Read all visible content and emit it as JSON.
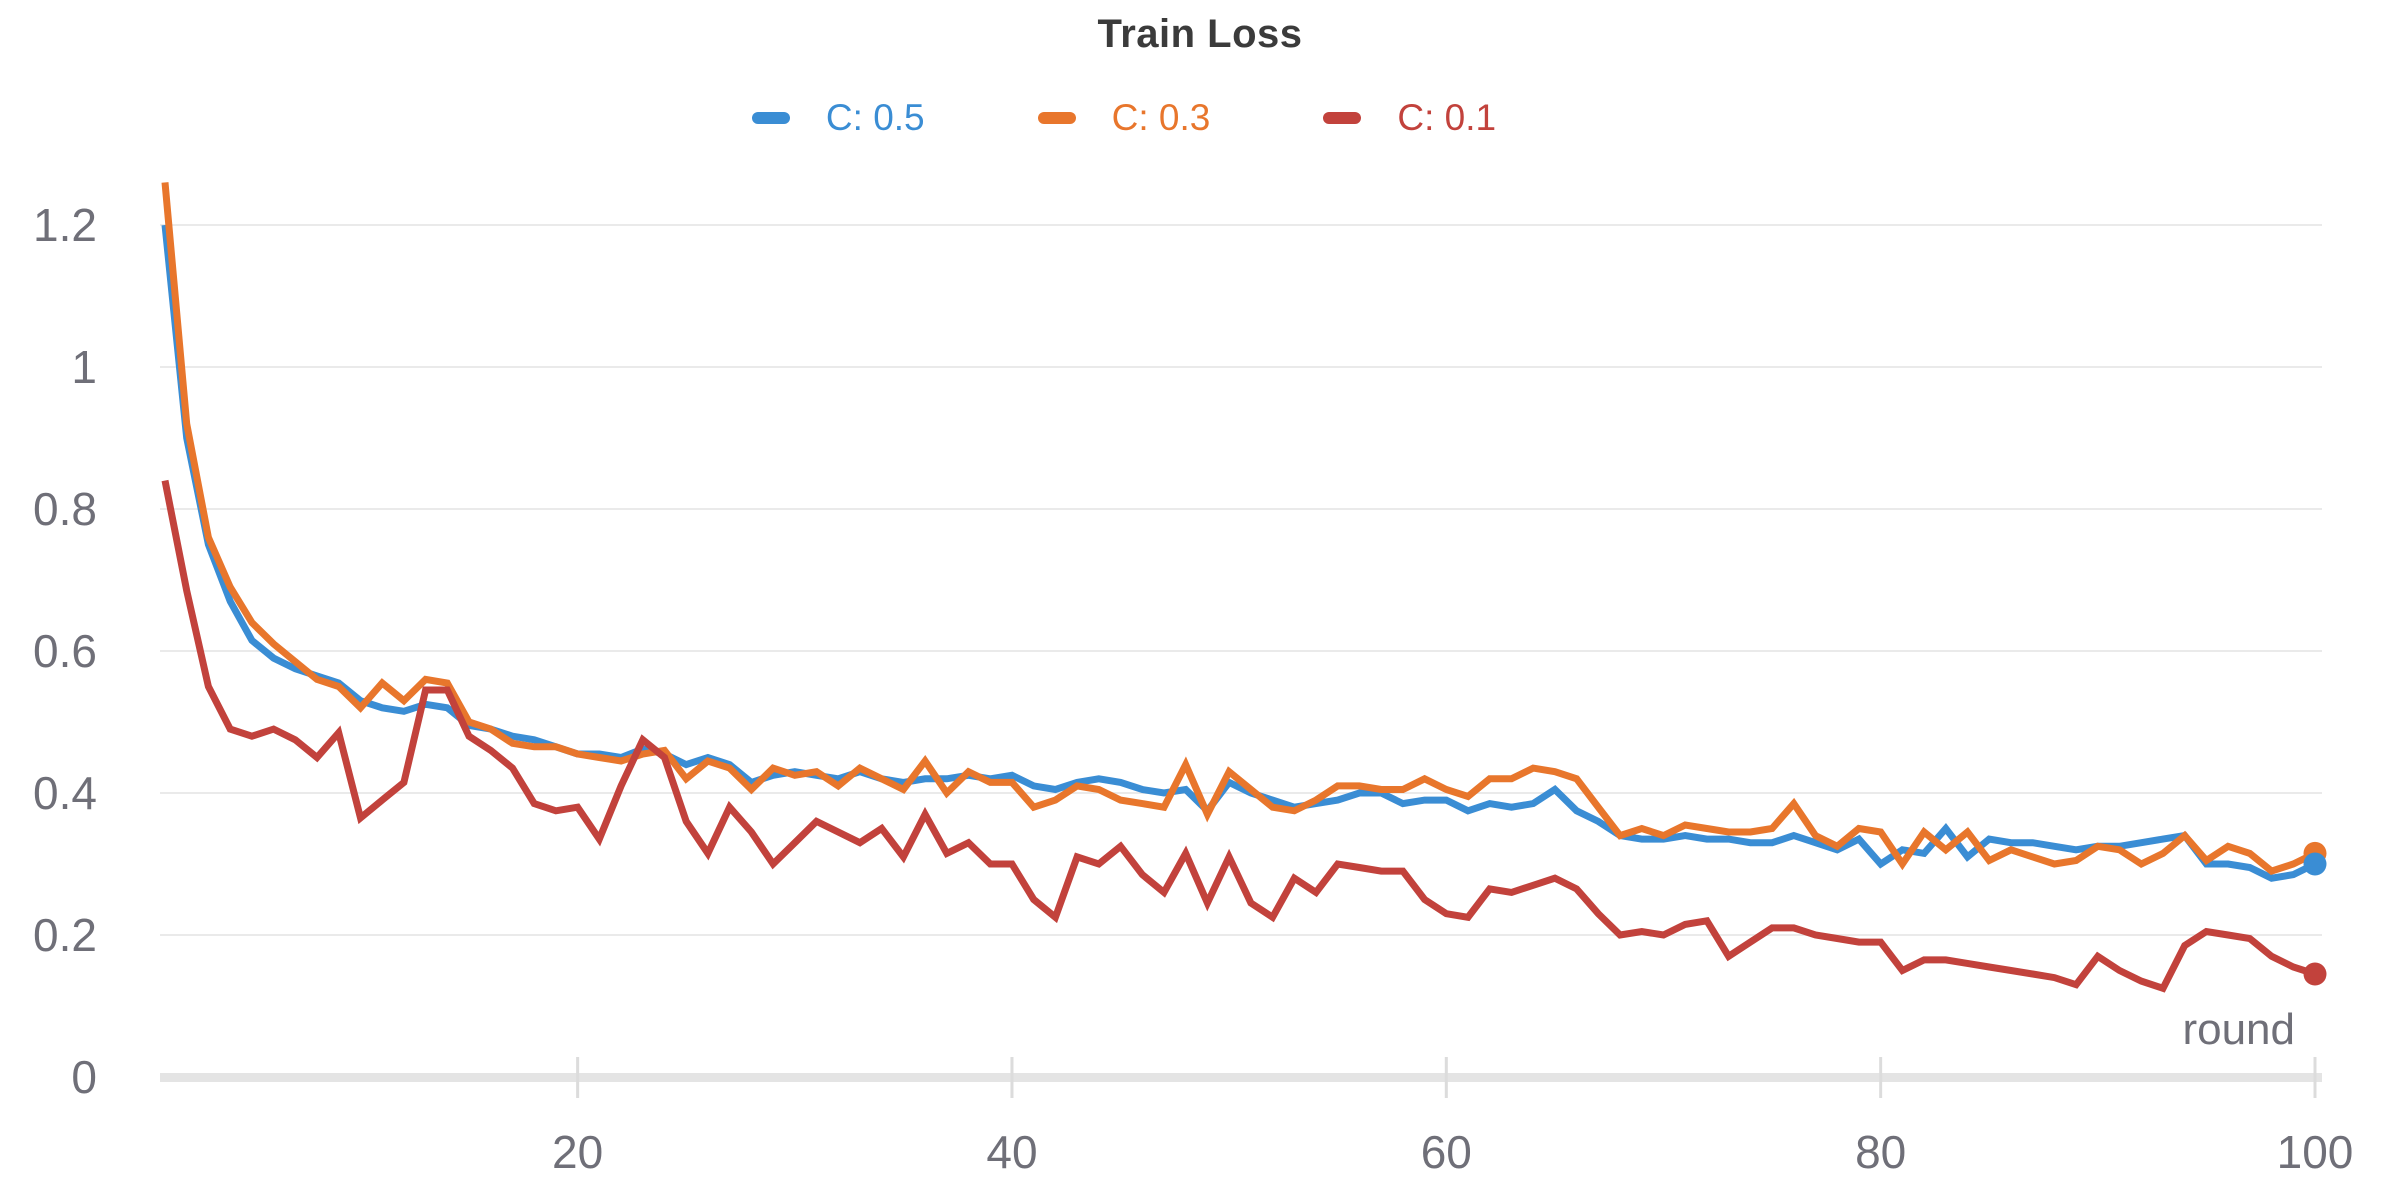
{
  "chart_data": {
    "type": "line",
    "title": "Train Loss",
    "xlabel": "round",
    "x_min": 1,
    "x_max": 100,
    "x_ticks": [
      20,
      40,
      60,
      80,
      100
    ],
    "y_ticks": [
      0,
      0.2,
      0.4,
      0.6,
      0.8,
      1,
      1.2
    ],
    "ylim": [
      0,
      1.26
    ],
    "grid": "horizontal",
    "legend_position": "top-center",
    "end_dot": true,
    "series": [
      {
        "name": "C: 0.5",
        "color": "#3a8dd4",
        "values": [
          1.2,
          0.9,
          0.75,
          0.67,
          0.615,
          0.59,
          0.575,
          0.565,
          0.555,
          0.53,
          0.52,
          0.515,
          0.525,
          0.52,
          0.495,
          0.49,
          0.48,
          0.475,
          0.465,
          0.455,
          0.455,
          0.45,
          0.462,
          0.455,
          0.44,
          0.45,
          0.44,
          0.415,
          0.425,
          0.43,
          0.425,
          0.42,
          0.43,
          0.42,
          0.415,
          0.42,
          0.42,
          0.425,
          0.42,
          0.425,
          0.41,
          0.405,
          0.415,
          0.42,
          0.415,
          0.405,
          0.4,
          0.405,
          0.375,
          0.415,
          0.4,
          0.39,
          0.38,
          0.385,
          0.39,
          0.4,
          0.4,
          0.385,
          0.39,
          0.39,
          0.375,
          0.385,
          0.38,
          0.385,
          0.405,
          0.375,
          0.36,
          0.34,
          0.335,
          0.335,
          0.34,
          0.335,
          0.335,
          0.33,
          0.33,
          0.34,
          0.33,
          0.32,
          0.335,
          0.3,
          0.32,
          0.315,
          0.35,
          0.31,
          0.335,
          0.33,
          0.33,
          0.325,
          0.32,
          0.325,
          0.325,
          0.33,
          0.335,
          0.34,
          0.3,
          0.3,
          0.295,
          0.28,
          0.285,
          0.3
        ]
      },
      {
        "name": "C: 0.3",
        "color": "#e8762c",
        "values": [
          1.26,
          0.92,
          0.76,
          0.69,
          0.64,
          0.61,
          0.585,
          0.56,
          0.55,
          0.52,
          0.555,
          0.53,
          0.56,
          0.555,
          0.5,
          0.49,
          0.47,
          0.465,
          0.465,
          0.455,
          0.45,
          0.445,
          0.455,
          0.46,
          0.42,
          0.445,
          0.435,
          0.405,
          0.435,
          0.425,
          0.43,
          0.41,
          0.435,
          0.42,
          0.405,
          0.445,
          0.4,
          0.43,
          0.415,
          0.415,
          0.38,
          0.39,
          0.41,
          0.405,
          0.39,
          0.385,
          0.38,
          0.44,
          0.37,
          0.43,
          0.405,
          0.38,
          0.375,
          0.39,
          0.41,
          0.41,
          0.405,
          0.405,
          0.42,
          0.405,
          0.395,
          0.42,
          0.42,
          0.435,
          0.43,
          0.42,
          0.38,
          0.34,
          0.35,
          0.34,
          0.355,
          0.35,
          0.345,
          0.345,
          0.35,
          0.385,
          0.34,
          0.325,
          0.35,
          0.345,
          0.3,
          0.345,
          0.32,
          0.345,
          0.305,
          0.32,
          0.31,
          0.3,
          0.305,
          0.325,
          0.32,
          0.3,
          0.315,
          0.34,
          0.305,
          0.325,
          0.315,
          0.29,
          0.3,
          0.315
        ]
      },
      {
        "name": "C: 0.1",
        "color": "#c2423c",
        "values": [
          0.84,
          0.685,
          0.55,
          0.49,
          0.48,
          0.49,
          0.475,
          0.45,
          0.485,
          0.365,
          0.39,
          0.415,
          0.545,
          0.545,
          0.48,
          0.46,
          0.435,
          0.385,
          0.375,
          0.38,
          0.335,
          0.41,
          0.475,
          0.45,
          0.36,
          0.315,
          0.38,
          0.345,
          0.3,
          0.33,
          0.36,
          0.345,
          0.33,
          0.35,
          0.31,
          0.37,
          0.315,
          0.33,
          0.3,
          0.3,
          0.25,
          0.225,
          0.31,
          0.3,
          0.325,
          0.285,
          0.26,
          0.315,
          0.245,
          0.31,
          0.245,
          0.225,
          0.28,
          0.26,
          0.3,
          0.295,
          0.29,
          0.29,
          0.25,
          0.23,
          0.225,
          0.265,
          0.26,
          0.27,
          0.28,
          0.265,
          0.23,
          0.2,
          0.205,
          0.2,
          0.215,
          0.22,
          0.17,
          0.19,
          0.21,
          0.21,
          0.2,
          0.195,
          0.19,
          0.19,
          0.15,
          0.165,
          0.165,
          0.16,
          0.155,
          0.15,
          0.145,
          0.14,
          0.13,
          0.17,
          0.15,
          0.135,
          0.125,
          0.185,
          0.205,
          0.2,
          0.195,
          0.17,
          0.155,
          0.145
        ]
      }
    ]
  },
  "colors": {
    "title_text": "#3b3b3b",
    "axis_text": "#6f6f78",
    "gridline": "#eaeaea",
    "baseline": "#e4e4e4",
    "tick": "#dcdcdc",
    "background": "#ffffff"
  }
}
